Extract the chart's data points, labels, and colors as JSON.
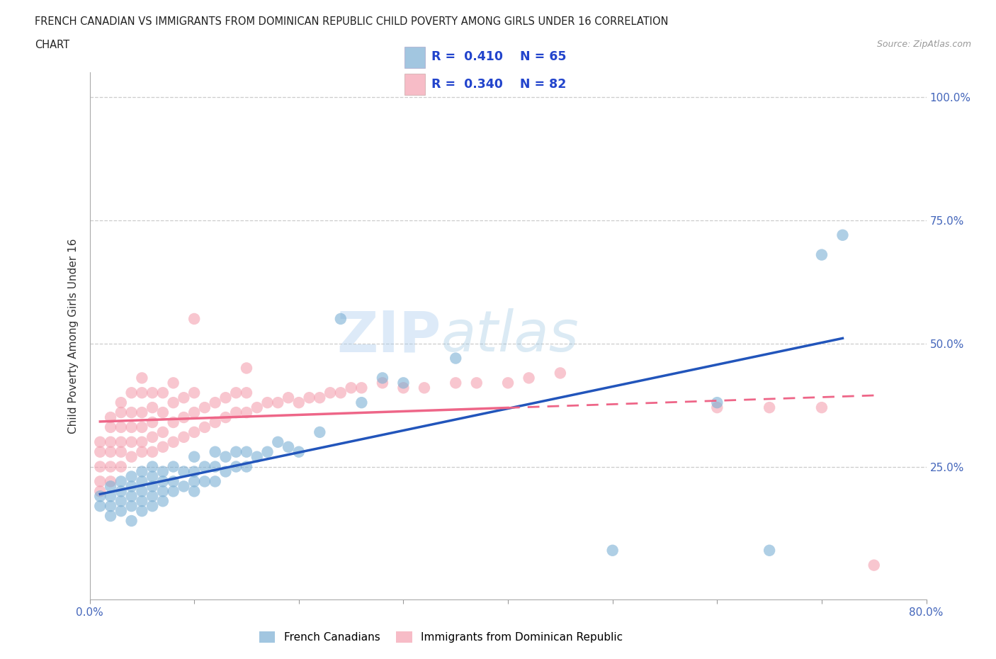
{
  "title_line1": "FRENCH CANADIAN VS IMMIGRANTS FROM DOMINICAN REPUBLIC CHILD POVERTY AMONG GIRLS UNDER 16 CORRELATION",
  "title_line2": "CHART",
  "source": "Source: ZipAtlas.com",
  "ylabel": "Child Poverty Among Girls Under 16",
  "xlim": [
    0.0,
    0.8
  ],
  "ylim": [
    -0.02,
    1.05
  ],
  "ytick_positions": [
    0.25,
    0.5,
    0.75,
    1.0
  ],
  "ytick_labels": [
    "25.0%",
    "50.0%",
    "75.0%",
    "100.0%"
  ],
  "blue_R": 0.41,
  "blue_N": 65,
  "pink_R": 0.34,
  "pink_N": 82,
  "blue_color": "#7BAFD4",
  "pink_color": "#F4A0B0",
  "blue_line_color": "#2255BB",
  "pink_line_color": "#EE6688",
  "background_color": "#ffffff",
  "blue_scatter_x": [
    0.01,
    0.01,
    0.02,
    0.02,
    0.02,
    0.02,
    0.03,
    0.03,
    0.03,
    0.03,
    0.04,
    0.04,
    0.04,
    0.04,
    0.04,
    0.05,
    0.05,
    0.05,
    0.05,
    0.05,
    0.06,
    0.06,
    0.06,
    0.06,
    0.06,
    0.07,
    0.07,
    0.07,
    0.07,
    0.08,
    0.08,
    0.08,
    0.09,
    0.09,
    0.1,
    0.1,
    0.1,
    0.1,
    0.11,
    0.11,
    0.12,
    0.12,
    0.12,
    0.13,
    0.13,
    0.14,
    0.14,
    0.15,
    0.15,
    0.16,
    0.17,
    0.18,
    0.19,
    0.2,
    0.22,
    0.24,
    0.26,
    0.28,
    0.3,
    0.35,
    0.5,
    0.6,
    0.65,
    0.7,
    0.72
  ],
  "blue_scatter_y": [
    0.17,
    0.19,
    0.15,
    0.17,
    0.19,
    0.21,
    0.16,
    0.18,
    0.2,
    0.22,
    0.14,
    0.17,
    0.19,
    0.21,
    0.23,
    0.16,
    0.18,
    0.2,
    0.22,
    0.24,
    0.17,
    0.19,
    0.21,
    0.23,
    0.25,
    0.18,
    0.2,
    0.22,
    0.24,
    0.2,
    0.22,
    0.25,
    0.21,
    0.24,
    0.2,
    0.22,
    0.24,
    0.27,
    0.22,
    0.25,
    0.22,
    0.25,
    0.28,
    0.24,
    0.27,
    0.25,
    0.28,
    0.25,
    0.28,
    0.27,
    0.28,
    0.3,
    0.29,
    0.28,
    0.32,
    0.55,
    0.38,
    0.43,
    0.42,
    0.47,
    0.08,
    0.38,
    0.08,
    0.68,
    0.72
  ],
  "pink_scatter_x": [
    0.01,
    0.01,
    0.01,
    0.01,
    0.01,
    0.02,
    0.02,
    0.02,
    0.02,
    0.02,
    0.02,
    0.03,
    0.03,
    0.03,
    0.03,
    0.03,
    0.03,
    0.04,
    0.04,
    0.04,
    0.04,
    0.04,
    0.05,
    0.05,
    0.05,
    0.05,
    0.05,
    0.05,
    0.06,
    0.06,
    0.06,
    0.06,
    0.06,
    0.07,
    0.07,
    0.07,
    0.07,
    0.08,
    0.08,
    0.08,
    0.08,
    0.09,
    0.09,
    0.09,
    0.1,
    0.1,
    0.1,
    0.11,
    0.11,
    0.12,
    0.12,
    0.13,
    0.13,
    0.14,
    0.14,
    0.15,
    0.15,
    0.16,
    0.17,
    0.18,
    0.19,
    0.2,
    0.21,
    0.22,
    0.23,
    0.24,
    0.25,
    0.26,
    0.28,
    0.3,
    0.32,
    0.35,
    0.37,
    0.4,
    0.42,
    0.45,
    0.1,
    0.15,
    0.6,
    0.65,
    0.7,
    0.75
  ],
  "pink_scatter_y": [
    0.2,
    0.22,
    0.25,
    0.28,
    0.3,
    0.22,
    0.25,
    0.28,
    0.3,
    0.33,
    0.35,
    0.25,
    0.28,
    0.3,
    0.33,
    0.36,
    0.38,
    0.27,
    0.3,
    0.33,
    0.36,
    0.4,
    0.28,
    0.3,
    0.33,
    0.36,
    0.4,
    0.43,
    0.28,
    0.31,
    0.34,
    0.37,
    0.4,
    0.29,
    0.32,
    0.36,
    0.4,
    0.3,
    0.34,
    0.38,
    0.42,
    0.31,
    0.35,
    0.39,
    0.32,
    0.36,
    0.4,
    0.33,
    0.37,
    0.34,
    0.38,
    0.35,
    0.39,
    0.36,
    0.4,
    0.36,
    0.4,
    0.37,
    0.38,
    0.38,
    0.39,
    0.38,
    0.39,
    0.39,
    0.4,
    0.4,
    0.41,
    0.41,
    0.42,
    0.41,
    0.41,
    0.42,
    0.42,
    0.42,
    0.43,
    0.44,
    0.55,
    0.45,
    0.37,
    0.37,
    0.37,
    0.05
  ]
}
